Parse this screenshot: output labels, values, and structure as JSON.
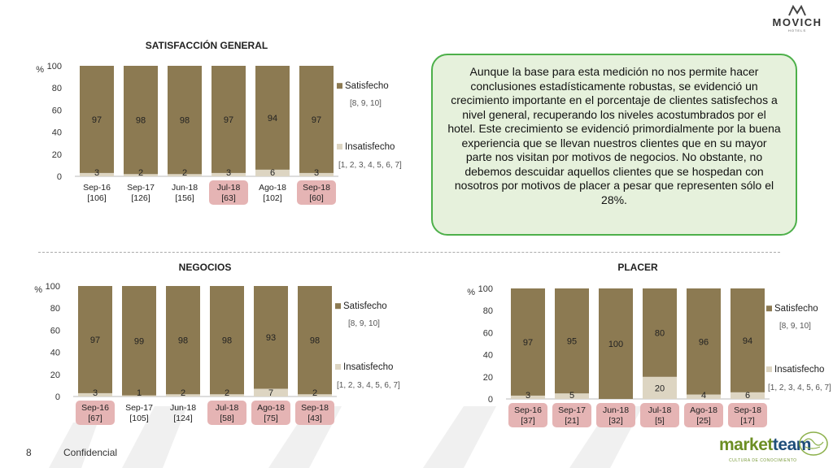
{
  "header": {
    "brand": "MOVICH",
    "brand_sub": "HOTELS"
  },
  "callout": {
    "text": "Aunque la base para esta medición no nos permite hacer conclusiones estadísticamente robustas, se evidenció un crecimiento importante en el porcentaje de clientes satisfechos a nivel general, recuperando los niveles acostumbrados por el hotel. Este crecimiento se evidenció primordialmente por la buena experiencia que se llevan nuestros clientes que en su mayor parte nos visitan por motivos de negocios. No obstante, no debemos descuidar aquellos clientes que se hospedan con nosotros por motivos de placer a pesar que representen sólo el 28%."
  },
  "footer": {
    "page": "8",
    "label": "Confidencial",
    "logo_market": "market",
    "logo_team": "team",
    "logo_sub": "CULTURA DE CONOCIMIENTO"
  },
  "colors": {
    "satisfecho": "#8c7a52",
    "insatisfecho": "#ddd5c2",
    "highlight": "#e5b4b4",
    "grid": "#d9d9d9"
  },
  "chart_data": [
    {
      "type": "bar",
      "title": "SATISFACCIÓN GENERAL",
      "ylabel": "%",
      "ylim": [
        0,
        100
      ],
      "yticks": [
        "0",
        "20",
        "40",
        "60",
        "80",
        "100"
      ],
      "categories": [
        "Sep-16",
        "Sep-17",
        "Jun-18",
        "Jul-18",
        "Ago-18",
        "Sep-18"
      ],
      "bases": [
        "[106]",
        "[126]",
        "[156]",
        "[63]",
        "[102]",
        "[60]"
      ],
      "highlighted": [
        false,
        false,
        false,
        true,
        false,
        true
      ],
      "series": [
        {
          "name": "Satisfecho",
          "scale": "[8, 9, 10]",
          "values": [
            97,
            98,
            98,
            97,
            94,
            97
          ]
        },
        {
          "name": "Insatisfecho",
          "scale": "[1, 2, 3, 4, 5, 6, 7]",
          "values": [
            3,
            2,
            2,
            3,
            6,
            3
          ]
        }
      ]
    },
    {
      "type": "bar",
      "title": "NEGOCIOS",
      "ylabel": "%",
      "ylim": [
        0,
        100
      ],
      "yticks": [
        "0",
        "20",
        "40",
        "60",
        "80",
        "100"
      ],
      "categories": [
        "Sep-16",
        "Sep-17",
        "Jun-18",
        "Jul-18",
        "Ago-18",
        "Sep-18"
      ],
      "bases": [
        "[67]",
        "[105]",
        "[124]",
        "[58]",
        "[75]",
        "[43]"
      ],
      "highlighted": [
        true,
        false,
        false,
        true,
        true,
        true
      ],
      "series": [
        {
          "name": "Satisfecho",
          "scale": "[8, 9, 10]",
          "values": [
            97,
            99,
            98,
            98,
            93,
            98
          ]
        },
        {
          "name": "Insatisfecho",
          "scale": "[1, 2, 3, 4, 5, 6, 7]",
          "values": [
            3,
            1,
            2,
            2,
            7,
            2
          ]
        }
      ]
    },
    {
      "type": "bar",
      "title": "PLACER",
      "ylabel": "%",
      "ylim": [
        0,
        100
      ],
      "yticks": [
        "0",
        "20",
        "40",
        "60",
        "80",
        "100"
      ],
      "categories": [
        "Sep-16",
        "Sep-17",
        "Jun-18",
        "Jul-18",
        "Ago-18",
        "Sep-18"
      ],
      "bases": [
        "[37]",
        "[21]",
        "[32]",
        "[5]",
        "[25]",
        "[17]"
      ],
      "highlighted": [
        true,
        true,
        true,
        true,
        true,
        true
      ],
      "series": [
        {
          "name": "Satisfecho",
          "scale": "[8, 9, 10]",
          "values": [
            97,
            95,
            100,
            80,
            96,
            94
          ]
        },
        {
          "name": "Insatisfecho",
          "scale": "[1, 2, 3, 4, 5, 6, 7]",
          "values": [
            3,
            5,
            null,
            20,
            4,
            6
          ]
        }
      ]
    }
  ]
}
